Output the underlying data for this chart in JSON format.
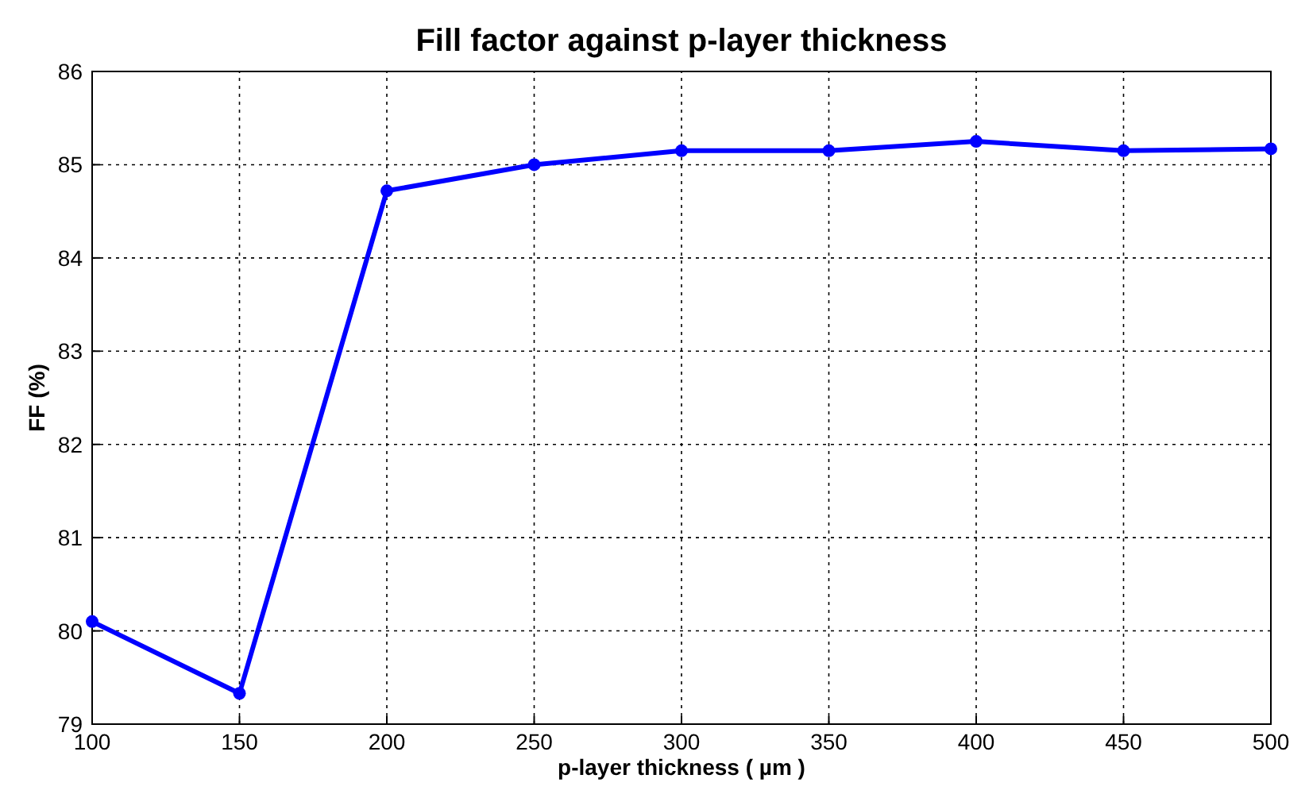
{
  "chart_data": {
    "type": "line",
    "title": "Fill factor against p-layer thickness",
    "xlabel": "p-layer thickness ( µm )",
    "ylabel": "FF (%)",
    "x": [
      100,
      150,
      200,
      250,
      300,
      350,
      400,
      450,
      500
    ],
    "series": [
      {
        "color": "#0000ff",
        "values": [
          80.1,
          79.33,
          84.72,
          85.0,
          85.15,
          85.15,
          85.25,
          85.15,
          85.17
        ]
      }
    ],
    "xlim": [
      100,
      500
    ],
    "xticks": [
      100,
      150,
      200,
      250,
      300,
      350,
      400,
      450,
      500
    ],
    "ylim": [
      79,
      86
    ],
    "yticks": [
      79,
      80,
      81,
      82,
      83,
      84,
      85,
      86
    ],
    "grid": true,
    "marker": "circle",
    "line_style": "solid"
  }
}
